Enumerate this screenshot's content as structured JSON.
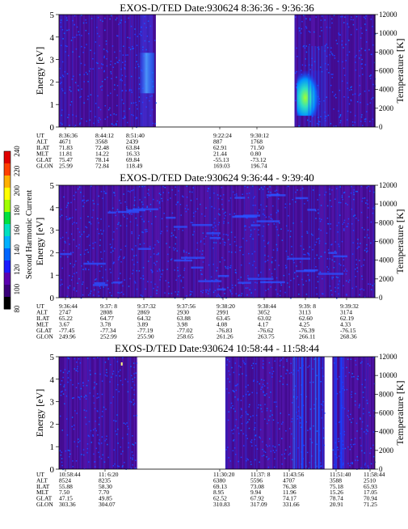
{
  "colorbar": {
    "label": "Second Harmonic Current",
    "ticks": [
      "80",
      "100",
      "120",
      "140",
      "160",
      "180",
      "200",
      "220",
      "240"
    ],
    "colors": [
      "#000000",
      "#3a007a",
      "#5a00b0",
      "#1a1aff",
      "#0066ff",
      "#00b0ff",
      "#00e0c0",
      "#00e040",
      "#a0ff00",
      "#ffff00",
      "#ffb000",
      "#ff4000",
      "#e00000"
    ]
  },
  "chart_data": [
    {
      "type": "heatmap",
      "title": "EXOS-D/TED   Date:930624   8:36:36 - 9:36:36",
      "ylabel": "Energy [eV]",
      "y2label": "Temperature [K]",
      "ylim": [
        0,
        5
      ],
      "y2lim": [
        0,
        12000
      ],
      "yticks": [
        "0",
        "1",
        "2",
        "3",
        "4",
        "5"
      ],
      "y2ticks": [
        "0",
        "2000",
        "4000",
        "6000",
        "8000",
        "10000",
        "12000"
      ],
      "data_segments": [
        {
          "start": "8:36:36",
          "end": "8:55:00",
          "hot_spot_time": "8:53:30",
          "hot_spot_energy": [
            1.5,
            3.3
          ]
        },
        {
          "start": "9:21:20",
          "end": "9:36:36",
          "hot_spot_time": "9:23:00",
          "hot_spot_energy": [
            0.5,
            2.5
          ]
        }
      ],
      "annotation_rows": [
        "UT",
        "ALT",
        "ILAT",
        "MLT",
        "GLAT",
        "GLON"
      ],
      "annotation_cols": [
        {
          "UT": "8:36:36",
          "ALT": "4671",
          "ILAT": "71.83",
          "MLT": "11.81",
          "GLAT": "75.47",
          "GLON": "25.99"
        },
        {
          "UT": "8:44:12",
          "ALT": "3568",
          "ILAT": "72.48",
          "MLT": "14.22",
          "GLAT": "78.14",
          "GLON": "72.84"
        },
        {
          "UT": "8:51:40",
          "ALT": "2439",
          "ILAT": "63.84",
          "MLT": "16.33",
          "GLAT": "69.84",
          "GLON": "118.49"
        },
        {
          "UT": "9:22:24",
          "ALT": "887",
          "ILAT": "62.91",
          "MLT": "21.44",
          "GLAT": "-55.13",
          "GLON": "169.03"
        },
        {
          "UT": "9:30:12",
          "ALT": "1768",
          "ILAT": "71.50",
          "MLT": "0.80",
          "GLAT": "-73.12",
          "GLON": "196.74"
        }
      ]
    },
    {
      "type": "heatmap",
      "title": "EXOS-D/TED   Date:930624   9:36:44 - 9:39:40",
      "ylabel": "Energy [eV]",
      "y2label": "Temperature [K]",
      "ylim": [
        0,
        5
      ],
      "y2lim": [
        0,
        12000
      ],
      "yticks": [
        "0",
        "1",
        "2",
        "3",
        "4",
        "5"
      ],
      "y2ticks": [
        "0",
        "2000",
        "4000",
        "6000",
        "8000",
        "10000",
        "12000"
      ],
      "data_segments": [
        {
          "start": "9:36:44",
          "end": "9:39:40"
        }
      ],
      "annotation_rows": [
        "UT",
        "ALT",
        "ILAT",
        "MLT",
        "GLAT",
        "GLON"
      ],
      "annotation_cols": [
        {
          "UT": "9:36:44",
          "ALT": "2747",
          "ILAT": "65.22",
          "MLT": "3.67",
          "GLAT": "-77.45",
          "GLON": "249.96"
        },
        {
          "UT": "9:37: 8",
          "ALT": "2808",
          "ILAT": "64.77",
          "MLT": "3.78",
          "GLAT": "-77.34",
          "GLON": "252.99"
        },
        {
          "UT": "9:37:32",
          "ALT": "2869",
          "ILAT": "64.32",
          "MLT": "3.89",
          "GLAT": "-77.19",
          "GLON": "255.90"
        },
        {
          "UT": "9:37:56",
          "ALT": "2930",
          "ILAT": "63.88",
          "MLT": "3.98",
          "GLAT": "-77.02",
          "GLON": "258.65"
        },
        {
          "UT": "9:38:20",
          "ALT": "2991",
          "ILAT": "63.45",
          "MLT": "4.08",
          "GLAT": "-76.83",
          "GLON": "261.26"
        },
        {
          "UT": "9:38:44",
          "ALT": "3052",
          "ILAT": "63.02",
          "MLT": "4.17",
          "GLAT": "-76.62",
          "GLON": "263.75"
        },
        {
          "UT": "9:39: 8",
          "ALT": "3113",
          "ILAT": "62.60",
          "MLT": "4.25",
          "GLAT": "-76.39",
          "GLON": "266.11"
        },
        {
          "UT": "9:39:32",
          "ALT": "3174",
          "ILAT": "62.19",
          "MLT": "4.33",
          "GLAT": "-76.15",
          "GLON": "268.36"
        }
      ]
    },
    {
      "type": "heatmap",
      "title": "EXOS-D/TED   Date:930624   10:58:44 - 11:58:44",
      "ylabel": "Energy [eV]",
      "y2label": "Temperature [K]",
      "ylim": [
        0,
        5
      ],
      "y2lim": [
        0,
        12000
      ],
      "yticks": [
        "0",
        "1",
        "2",
        "3",
        "4",
        "5"
      ],
      "y2ticks": [
        "0",
        "2000",
        "4000",
        "6000",
        "8000",
        "10000",
        "12000"
      ],
      "data_segments": [
        {
          "start": "10:58:44",
          "end": "11:13:30"
        },
        {
          "start": "11:30:20",
          "end": "11:49:10"
        },
        {
          "start": "11:50:40",
          "end": "11:58:44"
        }
      ],
      "annotation_rows": [
        "UT",
        "ALT",
        "ILAT",
        "MLT",
        "GLAT",
        "GLON"
      ],
      "annotation_cols": [
        {
          "UT": "10:58:44",
          "ALT": "8524",
          "ILAT": "55.88",
          "MLT": "7.50",
          "GLAT": "47.15",
          "GLON": "303.36"
        },
        {
          "UT": "11: 6:20",
          "ALT": "8235",
          "ILAT": "58.30",
          "MLT": "7.70",
          "GLAT": "49.85",
          "GLON": "304.07"
        },
        {
          "UT": "11:30:20",
          "ALT": "6380",
          "ILAT": "69.13",
          "MLT": "8.95",
          "GLAT": "62.52",
          "GLON": "310.83"
        },
        {
          "UT": "11:37: 8",
          "ALT": "5596",
          "ILAT": "73.08",
          "MLT": "9.94",
          "GLAT": "67.92",
          "GLON": "317.09"
        },
        {
          "UT": "11:43:56",
          "ALT": "4707",
          "ILAT": "76.38",
          "MLT": "11.96",
          "GLAT": "74.17",
          "GLON": "331.66"
        },
        {
          "UT": "11:51:40",
          "ALT": "3588",
          "ILAT": "75.18",
          "MLT": "15.26",
          "GLAT": "78.74",
          "GLON": "20.91"
        },
        {
          "UT": "11:58:44",
          "ALT": "2510",
          "ILAT": "65.93",
          "MLT": "17.05",
          "GLAT": "70.94",
          "GLON": "71.25"
        }
      ]
    }
  ]
}
